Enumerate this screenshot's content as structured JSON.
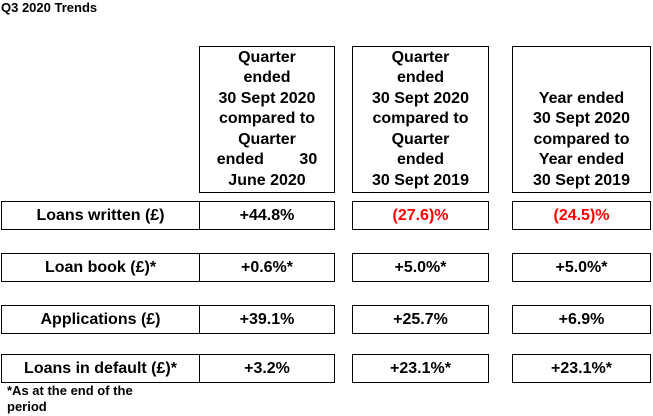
{
  "title": "Q3 2020 Trends",
  "columns": [
    {
      "lines": [
        "Quarter",
        "ended",
        "30 Sept 2020",
        "compared to",
        "Quarter",
        "ended        30",
        "June 2020"
      ]
    },
    {
      "lines": [
        "Quarter",
        "ended",
        "30 Sept 2020",
        "compared to",
        "Quarter",
        "ended",
        "30 Sept 2019"
      ]
    },
    {
      "lines": [
        "Year ended",
        "30 Sept 2020",
        "compared to",
        "Year ended",
        "30 Sept 2019"
      ]
    }
  ],
  "rows": [
    {
      "label": "Loans written (£)",
      "values": [
        "+44.8%",
        "(27.6)%",
        "(24.5)%"
      ],
      "negative": [
        false,
        true,
        true
      ]
    },
    {
      "label": "Loan book (£)*",
      "values": [
        "+0.6%*",
        "+5.0%*",
        "+5.0%*"
      ],
      "negative": [
        false,
        false,
        false
      ]
    },
    {
      "label": "Applications (£)",
      "values": [
        "+39.1%",
        "+25.7%",
        "+6.9%"
      ],
      "negative": [
        false,
        false,
        false
      ]
    },
    {
      "label": "Loans in default (£)*",
      "values": [
        "+3.2%",
        "+23.1%*",
        "+23.1%*"
      ],
      "negative": [
        false,
        false,
        false
      ]
    }
  ],
  "footnote": [
    "*As at the end of the",
    "period"
  ],
  "colors": {
    "negative": "#ff0000",
    "text": "#000000",
    "border": "#000000"
  }
}
